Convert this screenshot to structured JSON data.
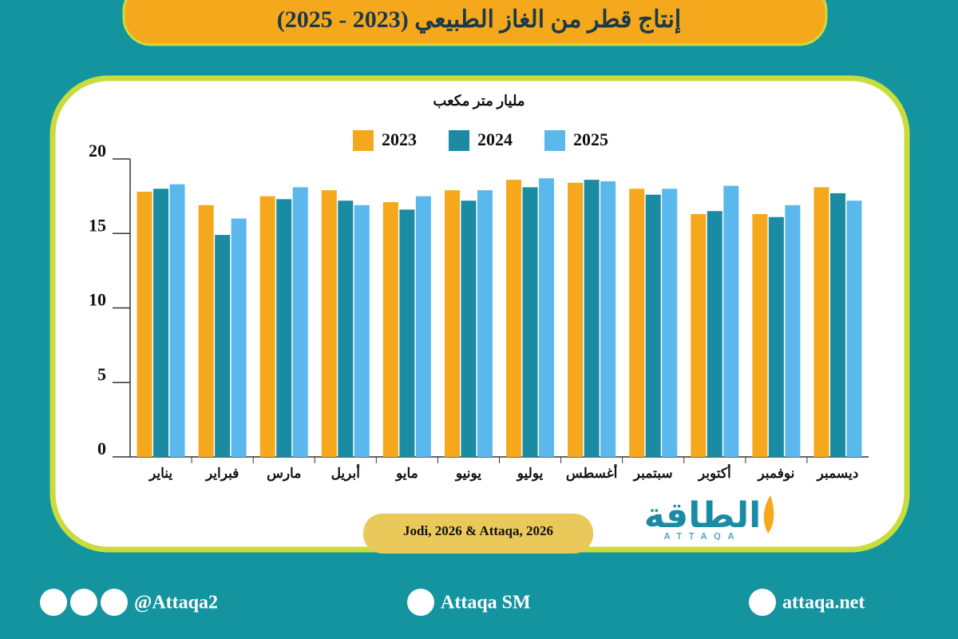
{
  "chart_data": {
    "type": "bar",
    "title": "إنتاج قطر من الغاز الطبيعي (2023 - 2025)",
    "unit_label": "مليار متر مكعب",
    "categories": [
      "يناير",
      "فبراير",
      "مارس",
      "أبريل",
      "مايو",
      "يونيو",
      "يوليو",
      "أغسطس",
      "سبتمبر",
      "أكتوبر",
      "نوفمبر",
      "ديسمبر"
    ],
    "series": [
      {
        "name": "2023",
        "color": "#f5a81c",
        "values": [
          17.8,
          16.9,
          17.5,
          17.9,
          17.1,
          17.9,
          18.6,
          18.4,
          18.0,
          16.3,
          16.3,
          18.1
        ]
      },
      {
        "name": "2024",
        "color": "#1b8ba3",
        "values": [
          18.0,
          14.9,
          17.3,
          17.2,
          16.6,
          17.2,
          18.1,
          18.6,
          17.6,
          16.5,
          16.1,
          17.7
        ]
      },
      {
        "name": "2025",
        "color": "#5bb8ec",
        "values": [
          18.3,
          16.0,
          18.1,
          16.9,
          17.5,
          17.9,
          18.7,
          18.5,
          18.0,
          18.2,
          16.9,
          17.2
        ]
      }
    ],
    "ylim": [
      0,
      20
    ],
    "yticks": [
      0,
      5,
      10,
      15,
      20
    ],
    "grid": false,
    "source": "Jodi, 2026 & Attaqa, 2026"
  },
  "logo": {
    "text": "الطاقة",
    "subtext": "ATTAQA"
  },
  "footer": {
    "social": "@Attaqa2",
    "youtube": "Attaqa SM",
    "website": "attaqa.net"
  }
}
